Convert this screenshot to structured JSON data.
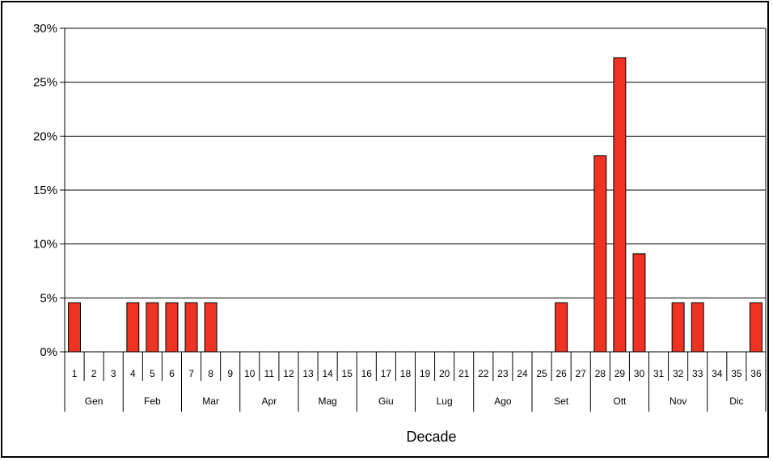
{
  "chart_data": {
    "type": "bar",
    "title": "",
    "xlabel": "Decade",
    "ylabel": "",
    "ylim": [
      0,
      30
    ],
    "y_tick_labels": [
      "0%",
      "5%",
      "10%",
      "15%",
      "20%",
      "25%",
      "30%"
    ],
    "y_tick_values": [
      0,
      5,
      10,
      15,
      20,
      25,
      30
    ],
    "grid": "horizontal",
    "bar_color": "#ee3322",
    "categories": [
      "1",
      "2",
      "3",
      "4",
      "5",
      "6",
      "7",
      "8",
      "9",
      "10",
      "11",
      "12",
      "13",
      "14",
      "15",
      "16",
      "17",
      "18",
      "19",
      "20",
      "21",
      "22",
      "23",
      "24",
      "25",
      "26",
      "27",
      "28",
      "29",
      "30",
      "31",
      "32",
      "33",
      "34",
      "35",
      "36"
    ],
    "values": [
      4.55,
      0,
      0,
      4.55,
      4.55,
      4.55,
      4.55,
      4.55,
      0,
      0,
      0,
      0,
      0,
      0,
      0,
      0,
      0,
      0,
      0,
      0,
      0,
      0,
      0,
      0,
      0,
      4.55,
      0,
      18.18,
      27.27,
      9.09,
      0,
      4.55,
      4.55,
      0,
      0,
      4.55
    ],
    "month_groups": [
      "Gen",
      "Feb",
      "Mar",
      "Apr",
      "Mag",
      "Giu",
      "Lug",
      "Ago",
      "Set",
      "Ott",
      "Nov",
      "Dic"
    ]
  }
}
